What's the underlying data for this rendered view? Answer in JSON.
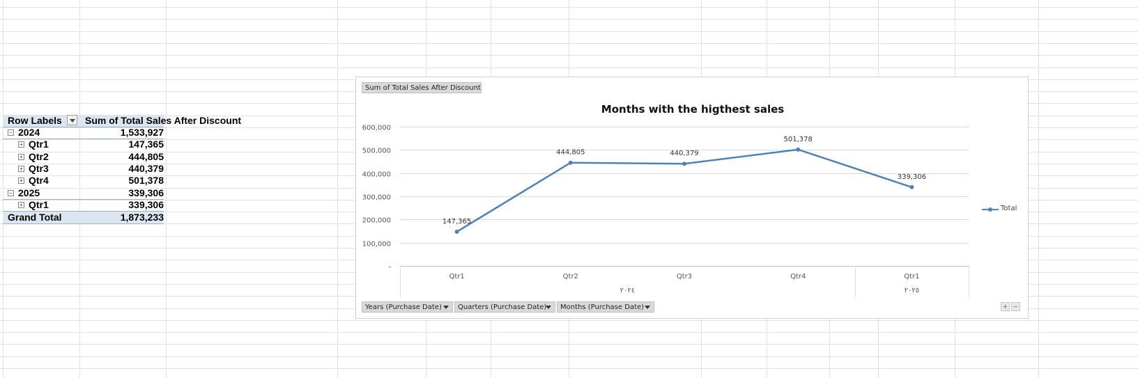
{
  "pivot": {
    "header": {
      "row_labels": "Row Labels",
      "value_field": "Sum of Total Sales After Discount"
    },
    "rows": [
      {
        "label": "2024",
        "value": "1,533,927",
        "level": 0,
        "expander": "−"
      },
      {
        "label": "Qtr1",
        "value": "147,365",
        "level": 1,
        "expander": "+"
      },
      {
        "label": "Qtr2",
        "value": "444,805",
        "level": 1,
        "expander": "+"
      },
      {
        "label": "Qtr3",
        "value": "440,379",
        "level": 1,
        "expander": "+"
      },
      {
        "label": "Qtr4",
        "value": "501,378",
        "level": 1,
        "expander": "+"
      },
      {
        "label": "2025",
        "value": "339,306",
        "level": 0,
        "expander": "−"
      },
      {
        "label": "Qtr1",
        "value": "339,306",
        "level": 1,
        "expander": "+"
      }
    ],
    "grand_total": {
      "label": "Grand Total",
      "value": "1,873,233"
    }
  },
  "chart": {
    "value_field_button": "Sum of Total Sales After Discount",
    "axis_field_buttons": [
      "Years (Purchase Date)",
      "Quarters (Purchase Date)",
      "Months (Purchase Date)"
    ],
    "zoom_in": "+",
    "zoom_out": "−"
  },
  "chart_data": {
    "type": "line",
    "title": "Months with the higthest sales",
    "categories": [
      "Qtr1",
      "Qtr2",
      "Qtr3",
      "Qtr4",
      "Qtr1"
    ],
    "groups": [
      {
        "label": "٢٠٢٤",
        "span": 4
      },
      {
        "label": "٢٠٢٥",
        "span": 1
      }
    ],
    "series": [
      {
        "name": "Total",
        "values": [
          147365,
          444805,
          440379,
          501378,
          339306
        ],
        "data_labels": [
          "147,365",
          "444,805",
          "440,379",
          "501,378",
          "339,306"
        ],
        "color": "#4f81bd"
      }
    ],
    "y_ticks": [
      "-",
      "100,000",
      "200,000",
      "300,000",
      "400,000",
      "500,000",
      "600,000"
    ],
    "ylim": [
      0,
      600000
    ],
    "grid": true,
    "legend": "right"
  }
}
